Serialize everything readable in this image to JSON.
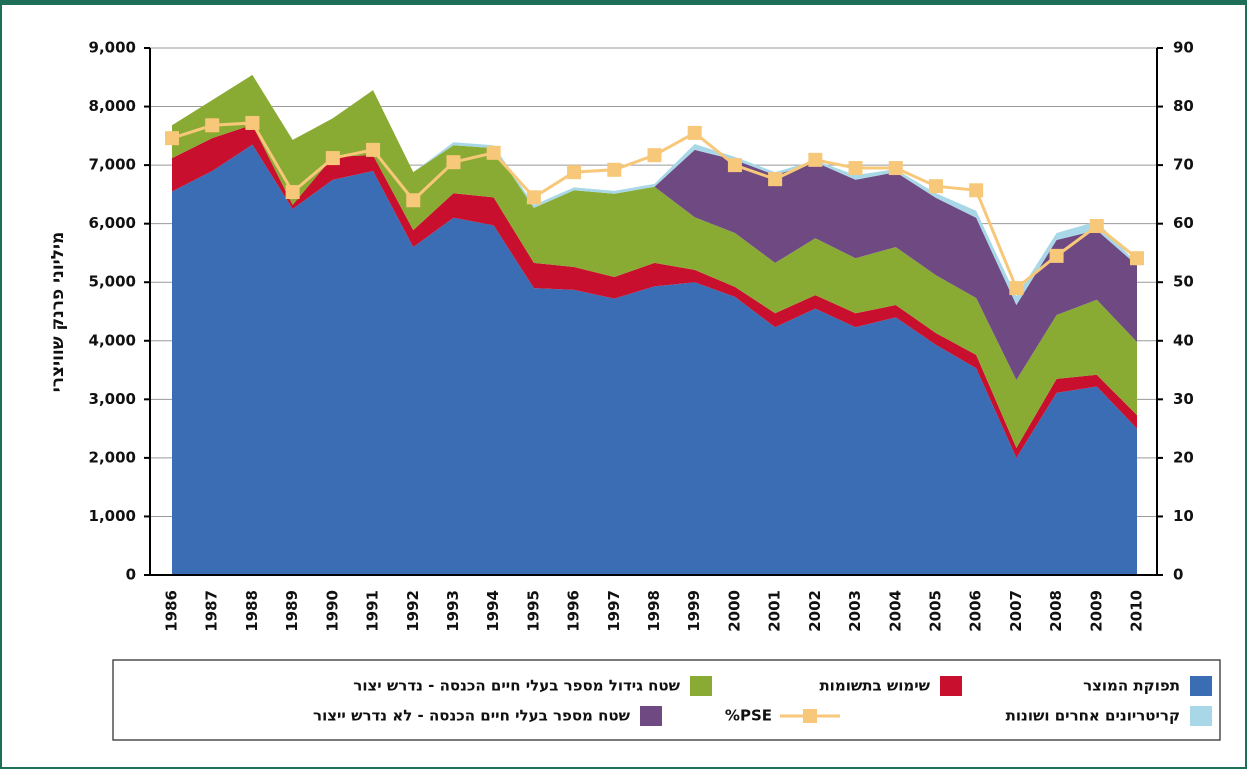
{
  "chart_data": {
    "type": "stacked-area",
    "y_label": "מיליוני פרנק שוויצרי",
    "categories": [
      "1986",
      "1987",
      "1988",
      "1989",
      "1990",
      "1991",
      "1992",
      "1993",
      "1994",
      "1995",
      "1996",
      "1997",
      "1998",
      "1999",
      "2000",
      "2001",
      "2002",
      "2003",
      "2004",
      "2005",
      "2006",
      "2007",
      "2008",
      "2009",
      "2010"
    ],
    "ylim": [
      0,
      9000
    ],
    "yticks": [
      0,
      {
        "value": 1000,
        "label": "1,000"
      },
      {
        "value": 2000,
        "label": "2,000"
      },
      {
        "value": 3000,
        "label": "3,000"
      },
      {
        "value": 4000,
        "label": "4,000"
      },
      {
        "value": 5000,
        "label": "5,000"
      },
      {
        "value": 6000,
        "label": "6,000"
      },
      {
        "value": 7000,
        "label": "7,000"
      },
      {
        "value": 8000,
        "label": "8,000"
      },
      {
        "value": 9000,
        "label": "9,000"
      }
    ],
    "y2lim": [
      0,
      90
    ],
    "y2ticks": [
      0,
      10,
      20,
      30,
      40,
      50,
      60,
      70,
      80,
      90
    ],
    "grid": true,
    "series": [
      {
        "name": "תפוקת המוצר",
        "color": "#3a6db3",
        "values": [
          6550,
          6900,
          7350,
          6250,
          6750,
          6900,
          5600,
          6100,
          5970,
          4900,
          4870,
          4720,
          4930,
          5000,
          4750,
          4230,
          4550,
          4230,
          4400,
          3930,
          3530,
          2000,
          3110,
          3220,
          2500
        ]
      },
      {
        "name": "שימוש בתשומות",
        "color": "#c8102e",
        "values": [
          570,
          560,
          340,
          70,
          390,
          270,
          290,
          420,
          480,
          430,
          390,
          370,
          400,
          210,
          170,
          240,
          230,
          240,
          210,
          200,
          230,
          170,
          240,
          200,
          230
        ]
      },
      {
        "name": "שטח גידול מספר בעלי חיים הכנסה - נדרש יצור",
        "color": "#8aab33",
        "values": [
          560,
          650,
          850,
          1110,
          660,
          1110,
          990,
          820,
          840,
          940,
          1310,
          1420,
          1300,
          900,
          920,
          860,
          970,
          940,
          990,
          990,
          970,
          1160,
          1090,
          1280,
          1250
        ]
      },
      {
        "name": "שטח מספר בעלי חיים הכנסה - לא נדרש ייצור",
        "color": "#6f4a82",
        "values": [
          0,
          0,
          0,
          0,
          0,
          0,
          0,
          0,
          0,
          0,
          0,
          0,
          0,
          1150,
          1250,
          1500,
          1300,
          1340,
          1280,
          1320,
          1370,
          1280,
          1280,
          1190,
          1310
        ]
      },
      {
        "name": "קריטריונים אחרים ושונות",
        "color": "#a8d8e8",
        "values": [
          0,
          0,
          0,
          0,
          0,
          0,
          0,
          50,
          50,
          50,
          50,
          50,
          50,
          100,
          50,
          50,
          30,
          80,
          50,
          80,
          120,
          150,
          120,
          150,
          30
        ]
      },
      {
        "name": "PSE%",
        "color": "#f7c87a",
        "axis": "y2",
        "values": [
          74.6,
          76.8,
          77.2,
          65.4,
          71.2,
          72.6,
          64.0,
          70.5,
          72.1,
          64.5,
          68.8,
          69.2,
          71.7,
          75.5,
          70.0,
          67.6,
          70.9,
          69.5,
          69.5,
          66.4,
          65.7,
          49.0,
          54.5,
          59.6,
          54.1
        ]
      }
    ]
  }
}
